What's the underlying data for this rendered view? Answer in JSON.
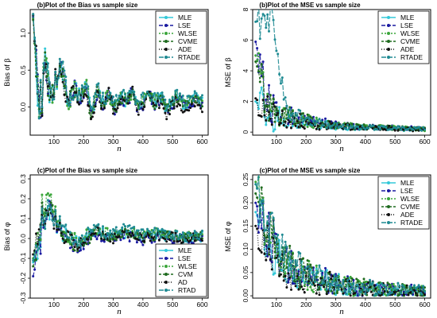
{
  "palette": {
    "MLE": "#33c8d8",
    "LSE": "#1a1aa0",
    "WLSE": "#3aa53a",
    "CVME": "#1f6b1f",
    "ADE": "#111111",
    "RTADE": "#1e8a92"
  },
  "chart_data": [
    {
      "type": "line",
      "title": "(b)Plot of the Bias vs sample size",
      "xlabel": "n",
      "ylabel": "Bias of β",
      "xlim": [
        20,
        620
      ],
      "ylim": [
        -0.38,
        1.32
      ],
      "xticks": [
        100,
        200,
        300,
        400,
        500,
        600
      ],
      "yticks": [
        0.0,
        0.5,
        1.0
      ],
      "yticklabels": [
        "0.0",
        "0.5",
        "1.0"
      ],
      "legend": {
        "position": "top-right",
        "labels": [
          "MLE",
          "LSE",
          "WLSE",
          "CVME",
          "ADE",
          "RTADE"
        ]
      },
      "series_source": "perturbed",
      "envelope": {
        "start": 30,
        "step": 5,
        "end": 600,
        "peak": 1.25,
        "amp": 0.55,
        "decay": 20,
        "tail_amp": 0.08,
        "mean": 0.04,
        "floor": -0.38
      },
      "series": [
        {
          "name": "MLE",
          "values": [
            1.25,
            -0.05,
            0.62,
            0.1,
            0.4,
            0.55,
            0.03,
            0.28,
            0.12,
            0.3,
            -0.1,
            0.22,
            0.05,
            0.18,
            0.0,
            0.14,
            0.08,
            0.2,
            -0.02,
            0.1,
            0.16,
            0.06,
            0.12,
            -0.04,
            0.1,
            0.14,
            0.02,
            0.08,
            0.12,
            0.05
          ]
        },
        {
          "name": "LSE",
          "values": [
            1.22,
            -0.1,
            0.58,
            0.05,
            0.44,
            0.5,
            0.0,
            0.3,
            0.08,
            0.26,
            -0.15,
            0.18,
            0.02,
            0.2,
            -0.05,
            0.1,
            0.04,
            0.22,
            -0.06,
            0.06,
            0.18,
            0.02,
            0.1,
            -0.08,
            0.06,
            0.12,
            -0.02,
            0.05,
            0.1,
            0.02
          ]
        },
        {
          "name": "WLSE",
          "values": [
            1.2,
            -0.02,
            0.65,
            0.12,
            0.38,
            0.58,
            0.06,
            0.25,
            0.15,
            0.33,
            -0.08,
            0.24,
            0.08,
            0.16,
            0.03,
            0.17,
            0.1,
            0.18,
            0.0,
            0.12,
            0.14,
            0.09,
            0.14,
            -0.02,
            0.12,
            0.16,
            0.04,
            0.1,
            0.14,
            0.08
          ]
        },
        {
          "name": "CVME",
          "values": [
            1.18,
            -0.08,
            0.6,
            0.08,
            0.42,
            0.52,
            0.02,
            0.27,
            0.1,
            0.28,
            -0.12,
            0.2,
            0.04,
            0.19,
            -0.02,
            0.12,
            0.06,
            0.21,
            -0.04,
            0.08,
            0.17,
            0.04,
            0.11,
            -0.06,
            0.08,
            0.13,
            0.0,
            0.07,
            0.11,
            0.04
          ]
        },
        {
          "name": "ADE",
          "values": [
            1.24,
            -0.12,
            0.55,
            0.02,
            0.46,
            0.48,
            -0.03,
            0.32,
            0.06,
            0.24,
            -0.18,
            0.16,
            0.0,
            0.22,
            -0.08,
            0.08,
            0.02,
            0.24,
            -0.08,
            0.04,
            0.2,
            0.0,
            0.08,
            -0.1,
            0.04,
            0.1,
            -0.05,
            0.03,
            0.08,
            0.0
          ]
        },
        {
          "name": "RTADE",
          "values": [
            1.26,
            0.0,
            0.68,
            0.15,
            0.36,
            0.6,
            0.08,
            0.24,
            0.18,
            0.35,
            -0.05,
            0.26,
            0.1,
            0.15,
            0.05,
            0.19,
            0.12,
            0.17,
            0.02,
            0.14,
            0.13,
            0.11,
            0.15,
            0.0,
            0.14,
            0.18,
            0.06,
            0.12,
            0.15,
            0.1
          ]
        }
      ]
    },
    {
      "type": "line",
      "title": "(b)Plot of the MSE vs sample size",
      "xlabel": "n",
      "ylabel": "MSE of β",
      "xlim": [
        20,
        620
      ],
      "ylim": [
        -0.2,
        8.0
      ],
      "xticks": [
        100,
        200,
        300,
        400,
        500,
        600
      ],
      "yticks": [
        0,
        2,
        4,
        6,
        8
      ],
      "yticklabels": [
        "0",
        "2",
        "4",
        "6",
        "8"
      ],
      "legend": {
        "position": "top-right",
        "labels": [
          "MLE",
          "LSE",
          "WLSE",
          "CVME",
          "ADE",
          "RTADE"
        ]
      },
      "series_source": "perturbed",
      "envelope": {
        "start": 30,
        "step": 5,
        "end": 600,
        "peak": 7.6,
        "amp": 3.0,
        "decay": 28,
        "tail_amp": 0.12,
        "mean": 0.3,
        "floor": 0.0,
        "spike_at": 65,
        "spike": 7.6
      },
      "series": [
        {
          "name": "MLE",
          "values": [
            2.0,
            1.0,
            0.8,
            0.7,
            0.5,
            0.4,
            0.35,
            0.3,
            0.3,
            0.25,
            0.2,
            0.2
          ]
        },
        {
          "name": "LSE",
          "values": [
            5.9,
            1.5,
            1.2,
            0.9,
            0.7,
            0.5,
            0.4,
            0.35,
            0.3,
            0.3,
            0.25,
            0.2
          ]
        },
        {
          "name": "WLSE",
          "values": [
            5.0,
            1.3,
            1.0,
            0.8,
            0.6,
            0.45,
            0.4,
            0.3,
            0.3,
            0.28,
            0.22,
            0.2
          ]
        },
        {
          "name": "CVME",
          "values": [
            4.6,
            1.4,
            1.1,
            0.85,
            0.65,
            0.5,
            0.42,
            0.32,
            0.3,
            0.27,
            0.23,
            0.2
          ]
        },
        {
          "name": "ADE",
          "values": [
            2.2,
            1.1,
            0.9,
            0.7,
            0.5,
            0.4,
            0.35,
            0.3,
            0.28,
            0.25,
            0.2,
            0.18
          ]
        },
        {
          "name": "RTADE",
          "values": [
            7.2,
            7.6,
            1.3,
            0.9,
            0.6,
            0.45,
            0.38,
            0.32,
            0.3,
            0.26,
            0.22,
            0.2
          ]
        }
      ]
    },
    {
      "type": "line",
      "title": "(c)Plot of the Bias vs sample size",
      "xlabel": "n",
      "ylabel": "Bias of φ",
      "xlim": [
        20,
        620
      ],
      "ylim": [
        -0.3,
        0.32
      ],
      "xticks": [
        100,
        200,
        300,
        400,
        500,
        600
      ],
      "yticks": [
        -0.3,
        -0.2,
        -0.1,
        0.0,
        0.1,
        0.2,
        0.3
      ],
      "yticklabels": [
        "-0.3",
        "-0.2",
        "-0.1",
        "0.0",
        "0.1",
        "0.2",
        "0.3"
      ],
      "legend": {
        "position": "bottom-right",
        "labels": [
          "MLE",
          "LSE",
          "WLSE",
          "CVM",
          "AD",
          "RTAD"
        ]
      },
      "series_source": "perturbed",
      "envelope": {
        "start": 30,
        "step": 5,
        "end": 600,
        "peak": 0.22,
        "amp": 0.12,
        "decay": 25,
        "tail_amp": 0.025,
        "mean": 0.01,
        "floor": -0.19,
        "dip_at": 30,
        "dip": -0.19
      },
      "series": [
        {
          "name": "MLE",
          "values": [
            -0.12,
            0.14,
            0.02,
            -0.03,
            0.04,
            0.01,
            0.03,
            0.0,
            0.02,
            0.01,
            0.0,
            0.01
          ]
        },
        {
          "name": "LSE",
          "values": [
            -0.19,
            0.16,
            0.0,
            -0.05,
            0.02,
            0.0,
            0.02,
            -0.01,
            0.01,
            0.0,
            -0.01,
            0.0
          ]
        },
        {
          "name": "WLSE",
          "values": [
            -0.1,
            0.22,
            0.03,
            -0.02,
            0.05,
            0.02,
            0.04,
            0.01,
            0.03,
            0.02,
            0.01,
            0.02
          ]
        },
        {
          "name": "CVM",
          "values": [
            -0.14,
            0.18,
            0.01,
            -0.04,
            0.03,
            0.01,
            0.03,
            0.0,
            0.02,
            0.01,
            0.0,
            0.01
          ]
        },
        {
          "name": "AD",
          "values": [
            -0.08,
            0.12,
            0.02,
            -0.03,
            0.04,
            0.0,
            0.02,
            0.0,
            0.01,
            0.01,
            0.0,
            0.01
          ]
        },
        {
          "name": "RTAD",
          "values": [
            -0.11,
            0.15,
            0.04,
            -0.01,
            0.05,
            0.02,
            0.05,
            0.02,
            0.03,
            0.02,
            0.01,
            0.02
          ]
        }
      ]
    },
    {
      "type": "line",
      "title": "(c)Plot of the MSE vs sample size",
      "xlabel": "n",
      "ylabel": "MSE of φ",
      "xlim": [
        20,
        620
      ],
      "ylim": [
        -0.005,
        0.26
      ],
      "xticks": [
        100,
        200,
        300,
        400,
        500,
        600
      ],
      "yticks": [
        0.0,
        0.05,
        0.1,
        0.15,
        0.2,
        0.25
      ],
      "yticklabels": [
        "0.00",
        "0.05",
        "0.10",
        "0.15",
        "0.20",
        "0.25"
      ],
      "legend": {
        "position": "top-right",
        "labels": [
          "MLE",
          "LSE",
          "WLSE",
          "CVME",
          "ADE",
          "RTADE"
        ]
      },
      "series_source": "perturbed",
      "envelope": {
        "start": 30,
        "step": 5,
        "end": 600,
        "peak": 0.245,
        "amp": 0.12,
        "decay": 60,
        "tail_amp": 0.006,
        "mean": 0.012,
        "floor": 0.0,
        "trend": "decay"
      },
      "series": [
        {
          "name": "MLE",
          "values": [
            0.18,
            0.1,
            0.06,
            0.045,
            0.035,
            0.025,
            0.02,
            0.015,
            0.013,
            0.012,
            0.011,
            0.01
          ]
        },
        {
          "name": "LSE",
          "values": [
            0.2,
            0.12,
            0.07,
            0.05,
            0.038,
            0.028,
            0.022,
            0.017,
            0.014,
            0.013,
            0.012,
            0.011
          ]
        },
        {
          "name": "WLSE",
          "values": [
            0.245,
            0.11,
            0.065,
            0.048,
            0.036,
            0.026,
            0.021,
            0.016,
            0.013,
            0.012,
            0.011,
            0.01
          ]
        },
        {
          "name": "CVME",
          "values": [
            0.22,
            0.13,
            0.075,
            0.052,
            0.04,
            0.03,
            0.023,
            0.018,
            0.015,
            0.014,
            0.012,
            0.011
          ]
        },
        {
          "name": "ADE",
          "values": [
            0.15,
            0.09,
            0.055,
            0.042,
            0.032,
            0.024,
            0.019,
            0.014,
            0.012,
            0.011,
            0.01,
            0.009
          ]
        },
        {
          "name": "RTADE",
          "values": [
            0.24,
            0.14,
            0.08,
            0.055,
            0.042,
            0.031,
            0.024,
            0.019,
            0.016,
            0.014,
            0.013,
            0.012
          ]
        }
      ]
    }
  ]
}
